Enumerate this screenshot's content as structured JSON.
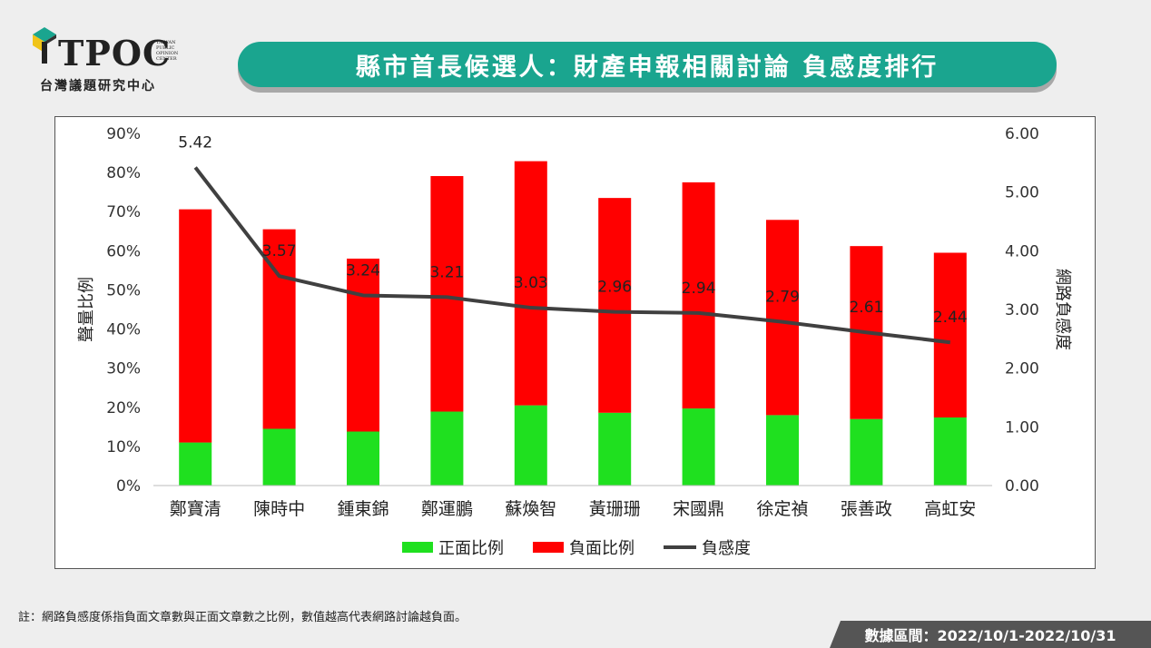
{
  "logo": {
    "brand": "TPOC",
    "subtitle": "台灣議題研究中心",
    "english_lines": [
      "TAIWAN",
      "PUBLIC",
      "OPINION",
      "CENTER"
    ]
  },
  "header": {
    "title": "縣市首長候選人：財產申報相關討論 負感度排行"
  },
  "chart_data": {
    "type": "bar",
    "stacked": true,
    "categories": [
      "鄭寶清",
      "陳時中",
      "鍾東錦",
      "鄭運鵬",
      "蘇煥智",
      "黃珊珊",
      "宋國鼎",
      "徐定禎",
      "張善政",
      "高虹安"
    ],
    "series": [
      {
        "name": "正面比例",
        "type": "bar",
        "axis": "left",
        "color": "#1fe01f",
        "values": [
          0.11,
          0.145,
          0.138,
          0.189,
          0.205,
          0.186,
          0.197,
          0.18,
          0.17,
          0.174
        ]
      },
      {
        "name": "負面比例",
        "type": "bar",
        "axis": "left",
        "color": "#ff0000",
        "values": [
          0.596,
          0.51,
          0.442,
          0.602,
          0.624,
          0.549,
          0.578,
          0.499,
          0.442,
          0.421
        ]
      },
      {
        "name": "負感度",
        "type": "line",
        "axis": "right",
        "color": "#404040",
        "values": [
          5.42,
          3.57,
          3.24,
          3.21,
          3.03,
          2.96,
          2.94,
          2.79,
          2.61,
          2.44
        ],
        "labels": [
          "5.42",
          "3.57",
          "3.24",
          "3.21",
          "3.03",
          "2.96",
          "2.94",
          "2.79",
          "2.61",
          "2.44"
        ]
      }
    ],
    "ylabel": "聲量比例",
    "ylabel_right": "網路負感度",
    "ylim": [
      0,
      0.9
    ],
    "ylim_right": [
      0,
      6
    ],
    "yticks": [
      "0%",
      "10%",
      "20%",
      "30%",
      "40%",
      "50%",
      "60%",
      "70%",
      "80%",
      "90%"
    ],
    "yticks_right": [
      "0.00",
      "1.00",
      "2.00",
      "3.00",
      "4.00",
      "5.00",
      "6.00"
    ],
    "legend_position": "bottom",
    "grid": false
  },
  "footer": {
    "note": "註：網路負感度係指負面文章數與正面文章數之比例，數值越高代表網路討論越負面。",
    "date_range": "數據區間：2022/10/1-2022/10/31"
  }
}
